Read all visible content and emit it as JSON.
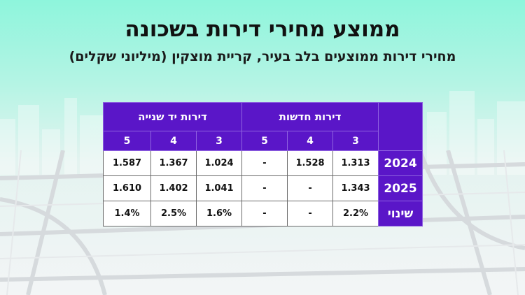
{
  "title": "ממוצע מחירי דירות בשכונה",
  "subtitle": "מחירי דירות ממוצעים בלב בעיר, קריית מוצקין (מיליוני שקלים)",
  "table": {
    "groups": [
      "דירות חדשות",
      "דירות יד שנייה"
    ],
    "rooms": [
      "3",
      "4",
      "5",
      "3",
      "4",
      "5"
    ],
    "rows": [
      {
        "label": "2024",
        "cells": [
          "1.313",
          "1.528",
          "-",
          "1.024",
          "1.367",
          "1.587"
        ]
      },
      {
        "label": "2025",
        "cells": [
          "1.343",
          "-",
          "-",
          "1.041",
          "1.402",
          "1.610"
        ]
      },
      {
        "label": "שינוי",
        "cells": [
          "2.2%",
          "-",
          "-",
          "1.6%",
          "2.5%",
          "1.4%"
        ]
      }
    ]
  },
  "colors": {
    "header_purple": "#5a16c8",
    "background_mint": "#8ef5dc"
  }
}
